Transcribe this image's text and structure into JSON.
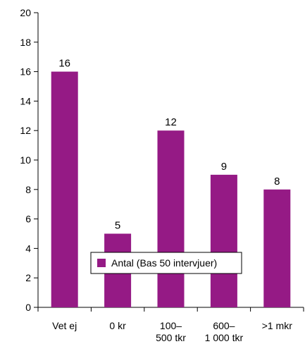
{
  "chart_data": {
    "type": "bar",
    "categories": [
      [
        "Vet ej"
      ],
      [
        "0 kr"
      ],
      [
        "100–",
        "500 tkr"
      ],
      [
        "600–",
        "1 000 tkr"
      ],
      [
        ">1 mkr"
      ]
    ],
    "series": [
      {
        "name": "Antal (Bas 50 intervjuer)",
        "values": [
          16,
          5,
          12,
          9,
          8
        ],
        "data_labels": [
          "16",
          "5",
          "12",
          "9",
          "8"
        ]
      }
    ],
    "ylim": [
      0,
      20
    ],
    "yticks": [
      "0",
      "2",
      "4",
      "6",
      "8",
      "10",
      "12",
      "14",
      "16",
      "18",
      "20"
    ],
    "grid": false,
    "legend_position": "bottom-center"
  },
  "colors": {
    "bar": "#951a85",
    "axis": "#000000",
    "legend_border": "#000000"
  }
}
